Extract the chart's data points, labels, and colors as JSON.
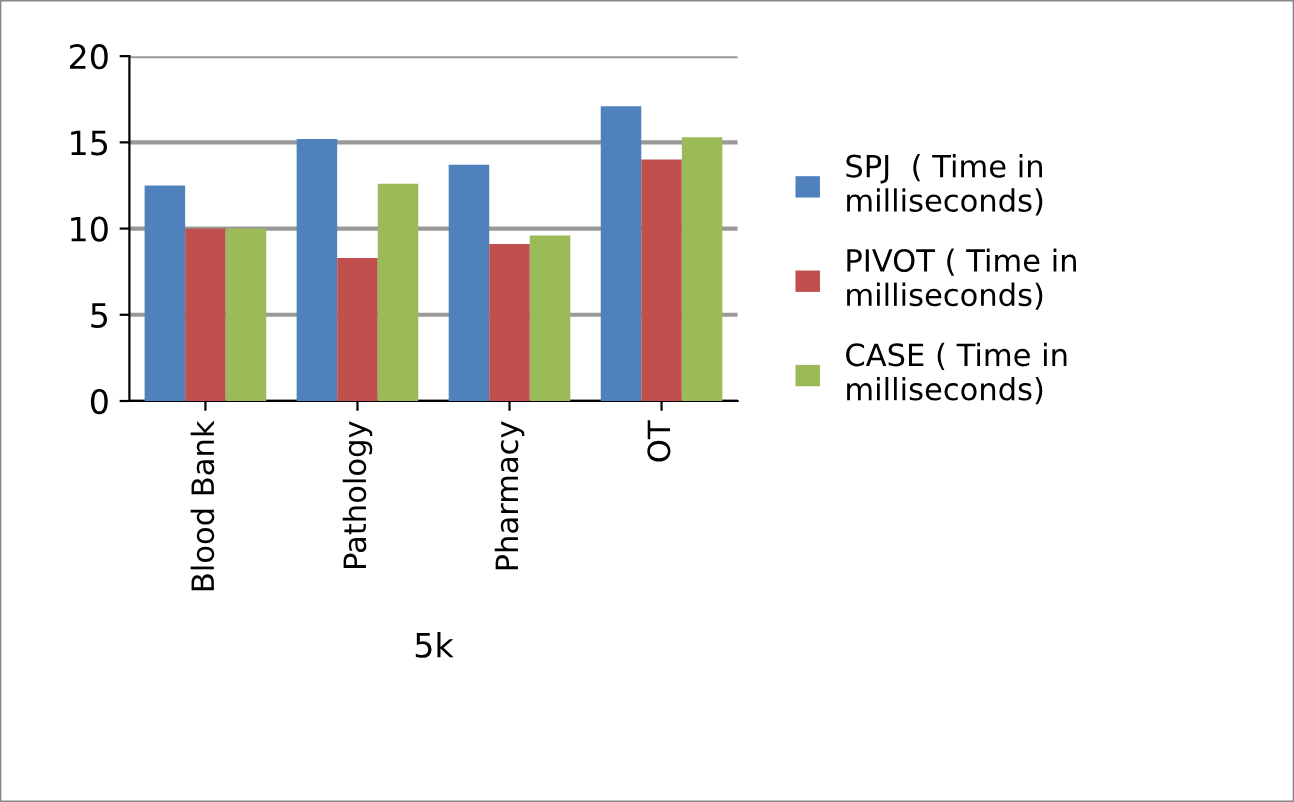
{
  "chart_data": {
    "type": "bar",
    "xlabel": "5k",
    "categories": [
      "Blood Bank",
      "Pathology",
      "Pharmacy",
      "OT"
    ],
    "series": [
      {
        "name": "SPJ  ( Time in\nmilliseconds)",
        "color": "#4f81bd",
        "values": [
          12.5,
          15.2,
          13.7,
          17.1
        ]
      },
      {
        "name": "PIVOT ( Time in\nmilliseconds)",
        "color": "#c0504d",
        "values": [
          10,
          8.3,
          9.1,
          14
        ]
      },
      {
        "name": "CASE ( Time in\nmilliseconds)",
        "color": "#9bbb59",
        "values": [
          10,
          12.6,
          9.6,
          15.3
        ]
      }
    ],
    "ylim": [
      0,
      20
    ],
    "yticks": [
      0,
      5,
      10,
      15,
      20
    ],
    "grid": "y",
    "legend": "right"
  }
}
